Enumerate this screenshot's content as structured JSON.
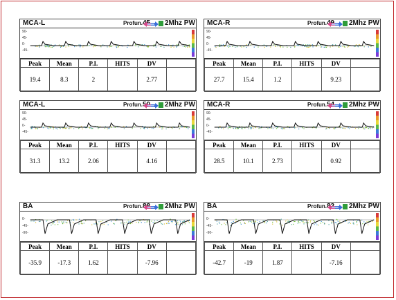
{
  "panels": [
    {
      "vessel": "MCA-L",
      "profun_label": "Profun.",
      "depth": "45",
      "mode": "2Mhz PW",
      "scale": [
        "90-",
        "45-",
        "0-",
        "-45-"
      ],
      "peak": "19.4",
      "mean": "8.3",
      "pi": "2",
      "hits": "",
      "dv": "2.77"
    },
    {
      "vessel": "MCA-R",
      "profun_label": "Profun.",
      "depth": "49",
      "mode": "2Mhz PW",
      "scale": [
        "90-",
        "45-",
        "0-",
        "-45-"
      ],
      "peak": "27.7",
      "mean": "15.4",
      "pi": "1.2",
      "hits": "",
      "dv": "9.23"
    },
    {
      "vessel": "MCA-L",
      "profun_label": "Profun.",
      "depth": "50",
      "mode": "2Mhz PW",
      "scale": [
        "90-",
        "45-",
        "0-",
        "-45-"
      ],
      "peak": "31.3",
      "mean": "13.2",
      "pi": "2.06",
      "hits": "",
      "dv": "4.16"
    },
    {
      "vessel": "MCA-R",
      "profun_label": "Profun.",
      "depth": "54",
      "mode": "2Mhz PW",
      "scale": [
        "90-",
        "45-",
        "0-",
        "-45-"
      ],
      "peak": "28.5",
      "mean": "10.1",
      "pi": "2.73",
      "hits": "",
      "dv": "0.92"
    },
    {
      "vessel": "BA",
      "profun_label": "Profun.",
      "depth": "88",
      "mode": "2Mhz PW",
      "scale": [
        "0-",
        "-45-",
        "-90-"
      ],
      "peak": "-35.9",
      "mean": "-17.3",
      "pi": "1.62",
      "hits": "",
      "dv": "-7.96"
    },
    {
      "vessel": "BA",
      "profun_label": "Profun.",
      "depth": "82",
      "mode": "2Mhz PW",
      "scale": [
        "0-",
        "-45-",
        "-90-"
      ],
      "peak": "-42.7",
      "mean": "-19",
      "pi": "1.87",
      "hits": "",
      "dv": "-7.16"
    }
  ],
  "columns": {
    "peak": "Peak",
    "mean": "Mean",
    "pi": "P.I.",
    "hits": "HITS",
    "dv": "DV"
  },
  "colors": {
    "frame": "#c0282c",
    "waveform": "#111111",
    "accent": "#2f9d3a"
  }
}
